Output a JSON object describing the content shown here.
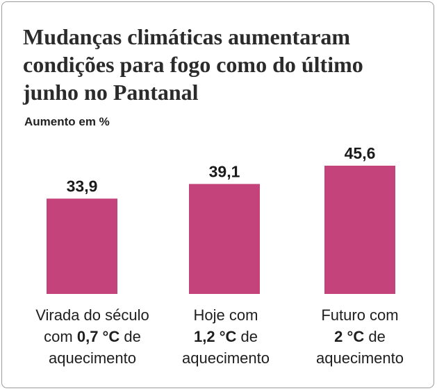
{
  "chart_data": {
    "type": "bar",
    "title": "Mudanças climáticas aumentaram condições para fogo como do último junho no Pantanal",
    "ylabel": "Aumento em %",
    "xlabel": "",
    "categories": [
      {
        "line1": "Virada do século",
        "pre": "com ",
        "bold": "0,7 °C",
        "post": " de",
        "line3": "aquecimento"
      },
      {
        "line1": "Hoje com",
        "pre": "",
        "bold": "1,2 °C",
        "post": " de",
        "line3": "aquecimento"
      },
      {
        "line1": "Futuro com",
        "pre": "",
        "bold": "2 °C",
        "post": " de",
        "line3": "aquecimento"
      }
    ],
    "values": [
      33.9,
      39.1,
      45.6
    ],
    "value_labels": [
      "33,9",
      "39,1",
      "45,6"
    ],
    "ylim": [
      0,
      45.6
    ],
    "grid": false,
    "bar_color": "#c4437a"
  }
}
